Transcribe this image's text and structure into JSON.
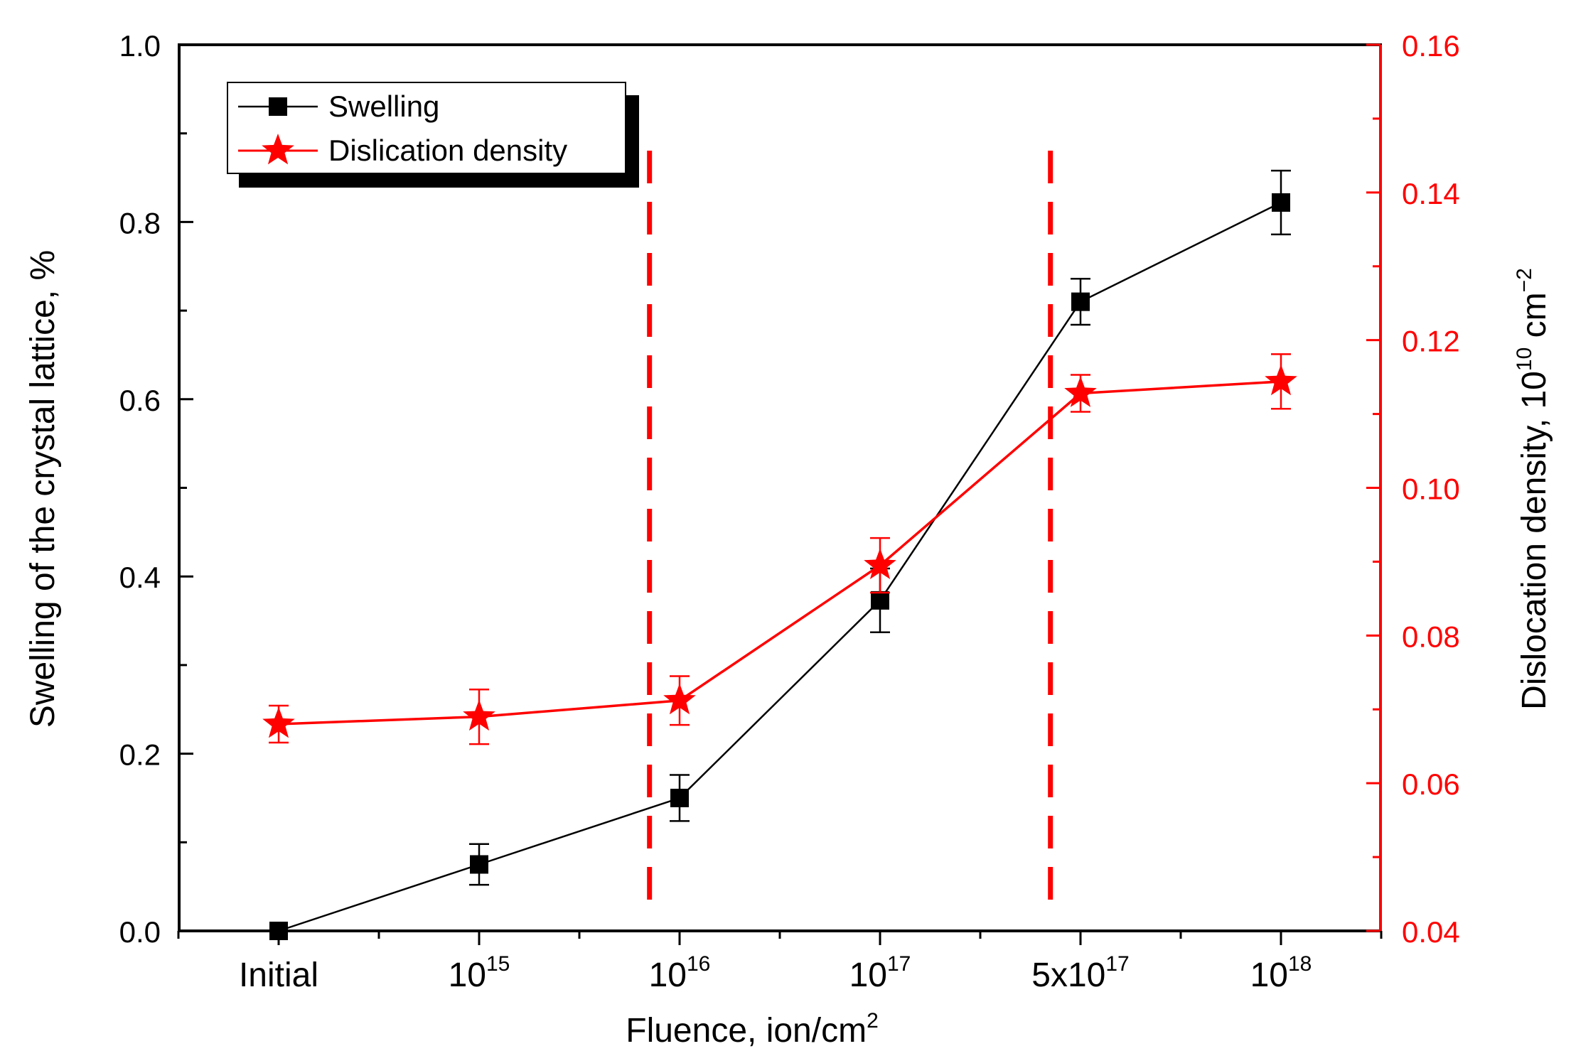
{
  "chart_data": {
    "type": "line",
    "title": "",
    "categories": [
      {
        "base": "Initial",
        "exp": ""
      },
      {
        "base": "10",
        "exp": "15"
      },
      {
        "base": "10",
        "exp": "16"
      },
      {
        "base": "10",
        "exp": "17"
      },
      {
        "base": "5x10",
        "exp": "17"
      },
      {
        "base": "10",
        "exp": "18"
      }
    ],
    "xlabel": {
      "text": "Fluence, ion/cm",
      "sup": "2"
    },
    "ylabel_left": "Swelling of the crystal lattice, %",
    "ylabel_right": {
      "pre": "Dislocation density,  10",
      "sup1": "10",
      "mid": " cm",
      "sup2": "−2"
    },
    "ylim_left": [
      0.0,
      1.0
    ],
    "ylim_right": [
      0.04,
      0.16
    ],
    "left_ticks": [
      "0.0",
      "0.2",
      "0.4",
      "0.6",
      "0.8",
      "1.0"
    ],
    "right_ticks": [
      "0.04",
      "0.06",
      "0.08",
      "0.10",
      "0.12",
      "0.14",
      "0.16"
    ],
    "series": [
      {
        "name": "Swelling",
        "axis": "left",
        "color": "#000000",
        "marker": "square",
        "values": [
          0.0,
          0.075,
          0.15,
          0.373,
          0.71,
          0.822
        ],
        "errors": [
          0.0,
          0.023,
          0.026,
          0.036,
          0.026,
          0.036
        ]
      },
      {
        "name": "Dislication density",
        "axis": "right",
        "color": "#ff0000",
        "marker": "star",
        "values": [
          0.068,
          0.069,
          0.0712,
          0.0895,
          0.1128,
          0.1144
        ],
        "errors": [
          0.0025,
          0.0037,
          0.0033,
          0.0037,
          0.0025,
          0.0037
        ]
      }
    ],
    "vlines": {
      "color": "#ff0000",
      "positions": [
        1.85,
        3.85
      ]
    },
    "legend": {
      "position": "top-left"
    }
  }
}
